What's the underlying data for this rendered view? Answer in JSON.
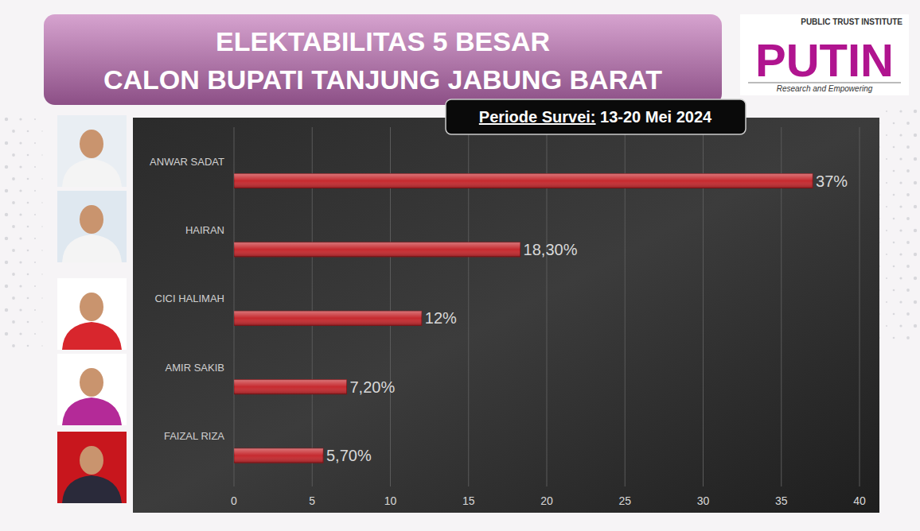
{
  "chart_data": {
    "type": "bar",
    "orientation": "horizontal",
    "title": "ELEKTABILITAS 5 BESAR",
    "subtitle": "CALON BUPATI TANJUNG JABUNG BARAT",
    "annotations": [
      "Periode Survei: 13-20 Mei 2024"
    ],
    "categories": [
      "ANWAR SADAT",
      "HAIRAN",
      "CICI HALIMAH",
      "AMIR SAKIB",
      "FAIZAL RIZA"
    ],
    "values": [
      37,
      18.3,
      12,
      7.2,
      5.7
    ],
    "value_labels": [
      "37%",
      "18,30%",
      "12%",
      "7,20%",
      "5,70%"
    ],
    "color": "#c62a2f",
    "xlim": [
      0,
      40
    ],
    "xticks": [
      0,
      5,
      10,
      15,
      20,
      25,
      30,
      35,
      40
    ],
    "grid": true,
    "data_labels": true
  },
  "logo": {
    "top": "PUBLIC TRUST INSTITUTE",
    "name": "PUTIN",
    "tagline": "Research and Empowering"
  }
}
